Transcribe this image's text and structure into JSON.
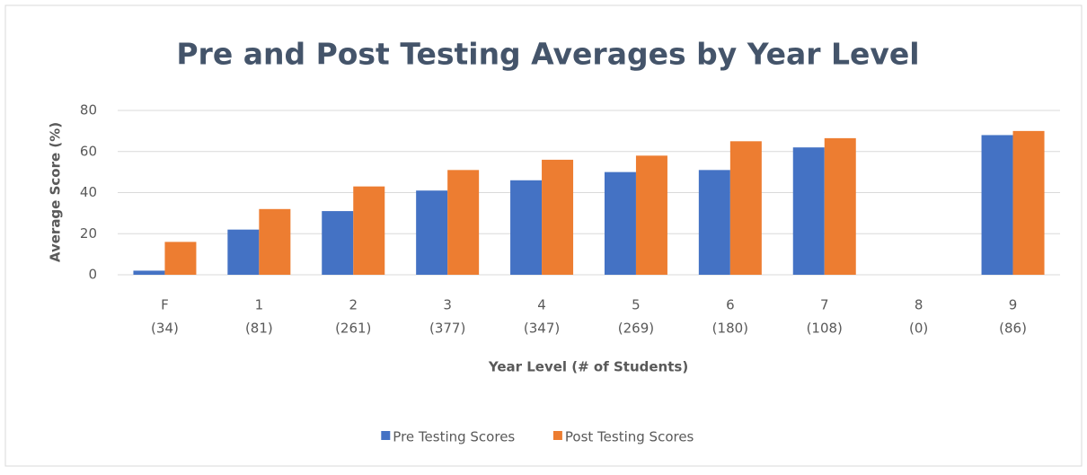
{
  "chart_data": {
    "type": "bar",
    "title": "Pre and Post Testing Averages by Year Level",
    "x_label": "Year Level (# of Students)",
    "y_label": "Average Score (%)",
    "categories": [
      [
        "F",
        "(34)"
      ],
      [
        "1",
        "(81)"
      ],
      [
        "2",
        "(261)"
      ],
      [
        "3",
        "(377)"
      ],
      [
        "4",
        "(347)"
      ],
      [
        "5",
        "(269)"
      ],
      [
        "6",
        "(180)"
      ],
      [
        "7",
        "(108)"
      ],
      [
        "8",
        "(0)"
      ],
      [
        "9",
        "(86)"
      ]
    ],
    "series": [
      {
        "name": "Pre Testing Scores",
        "color": "#4472c4",
        "values": [
          2,
          22,
          31,
          41,
          46,
          50,
          51,
          62,
          null,
          68
        ]
      },
      {
        "name": "Post Testing Scores",
        "color": "#ed7d31",
        "values": [
          16,
          32,
          43,
          51,
          56,
          58,
          65,
          66.5,
          null,
          70
        ]
      }
    ],
    "ylim": [
      0,
      80
    ],
    "yticks": [
      0,
      20,
      40,
      60,
      80
    ],
    "grid": true,
    "legend": "bottom"
  }
}
